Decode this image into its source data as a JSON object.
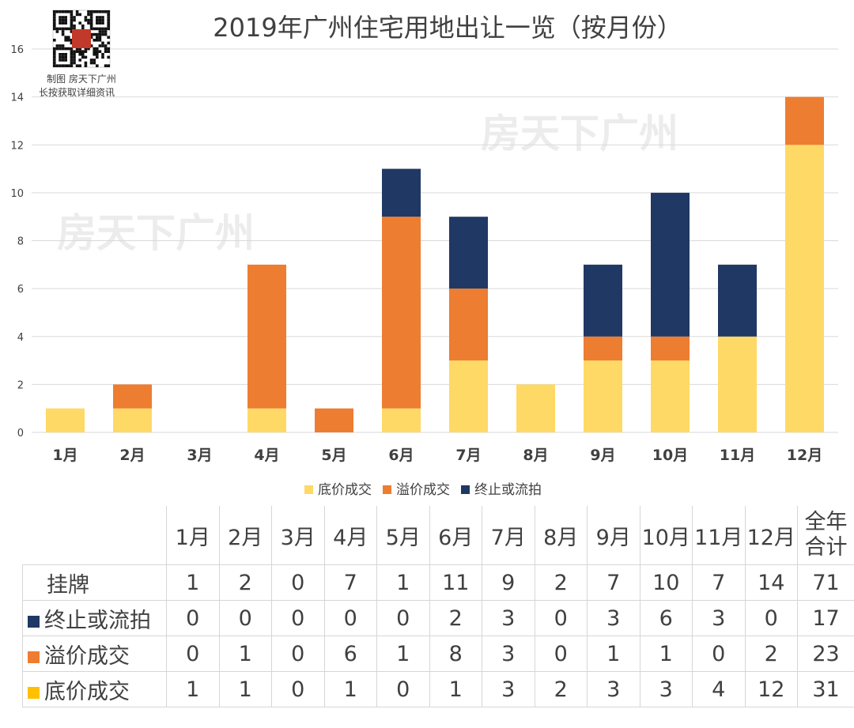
{
  "chart_data": {
    "type": "bar",
    "stacked": true,
    "title": "2019年广州住宅用地出让一览（按月份）",
    "categories": [
      "1月",
      "2月",
      "3月",
      "4月",
      "5月",
      "6月",
      "7月",
      "8月",
      "9月",
      "10月",
      "11月",
      "12月"
    ],
    "series": [
      {
        "name": "底价成交",
        "color": "#FFD966",
        "values": [
          1,
          1,
          0,
          1,
          0,
          1,
          3,
          2,
          3,
          3,
          4,
          12
        ]
      },
      {
        "name": "溢价成交",
        "color": "#ED7D31",
        "values": [
          0,
          1,
          0,
          6,
          1,
          8,
          3,
          0,
          1,
          1,
          0,
          2
        ]
      },
      {
        "name": "终止或流拍",
        "color": "#203864",
        "values": [
          0,
          0,
          0,
          0,
          0,
          2,
          3,
          0,
          3,
          6,
          3,
          0
        ]
      }
    ],
    "ylim": [
      0,
      16
    ],
    "yticks": [
      0,
      2,
      4,
      6,
      8,
      10,
      12,
      14,
      16
    ],
    "grid": true,
    "legend_position": "bottom"
  },
  "watermark": "房天下广州",
  "qr_caption": [
    "制图 房天下广州",
    "长按获取详细资讯"
  ],
  "table": {
    "total_header": [
      "全年",
      "合计"
    ],
    "rows": [
      {
        "label": "挂牌",
        "swatch": "",
        "values": [
          "1",
          "2",
          "0",
          "7",
          "1",
          "11",
          "9",
          "2",
          "7",
          "10",
          "7",
          "14",
          "71"
        ]
      },
      {
        "label": "终止或流拍",
        "swatch": "#203864",
        "values": [
          "0",
          "0",
          "0",
          "0",
          "0",
          "2",
          "3",
          "0",
          "3",
          "6",
          "3",
          "0",
          "17"
        ]
      },
      {
        "label": "溢价成交",
        "swatch": "#ED7D31",
        "values": [
          "0",
          "1",
          "0",
          "6",
          "1",
          "8",
          "3",
          "0",
          "1",
          "1",
          "0",
          "2",
          "23"
        ]
      },
      {
        "label": "底价成交",
        "swatch": "#FFC000",
        "values": [
          "1",
          "1",
          "0",
          "1",
          "0",
          "1",
          "3",
          "2",
          "3",
          "3",
          "4",
          "12",
          "31"
        ]
      }
    ]
  }
}
